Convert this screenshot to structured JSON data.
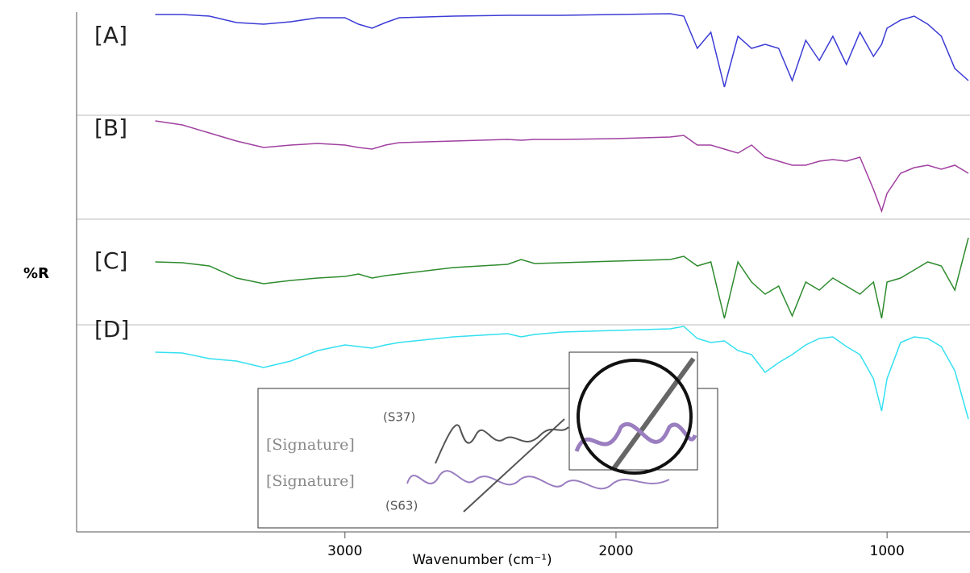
{
  "chart_data": {
    "type": "line",
    "y_label": "%R",
    "x_label": "Wavenumber (cm⁻¹)",
    "x": [
      3700,
      3600,
      3500,
      3400,
      3300,
      3200,
      3100,
      3000,
      2950,
      2900,
      2850,
      2800,
      2600,
      2400,
      2350,
      2300,
      2200,
      2000,
      1800,
      1750,
      1700,
      1650,
      1600,
      1550,
      1500,
      1450,
      1400,
      1350,
      1300,
      1250,
      1200,
      1150,
      1100,
      1050,
      1020,
      1000,
      950,
      900,
      850,
      800,
      750,
      700
    ],
    "xlim": [
      3990,
      694
    ],
    "xticks": [
      3000,
      2000,
      1000
    ],
    "ylim": [
      0,
      65
    ],
    "series": [
      {
        "name": "[A]",
        "color": "#3b3bd6",
        "values": [
          64.2,
          64.2,
          64.0,
          63.2,
          63.0,
          63.3,
          63.8,
          63.8,
          63.0,
          62.5,
          63.2,
          63.8,
          64.0,
          64.1,
          64.1,
          64.1,
          64.1,
          64.2,
          64.3,
          64.0,
          60.0,
          62.0,
          55.2,
          61.5,
          60.0,
          60.5,
          60.0,
          56.0,
          61.0,
          58.5,
          61.5,
          58.0,
          62.0,
          59.0,
          60.5,
          62.5,
          63.5,
          64.0,
          63.0,
          61.5,
          57.5,
          56.0
        ]
      },
      {
        "name": "[B]",
        "color": "#a040a0",
        "values": [
          51.0,
          50.5,
          49.5,
          48.5,
          47.7,
          48.0,
          48.2,
          48.0,
          47.7,
          47.5,
          48.0,
          48.3,
          48.5,
          48.7,
          48.6,
          48.7,
          48.7,
          48.8,
          49.0,
          49.2,
          48.0,
          48.0,
          47.5,
          47.0,
          48.0,
          46.5,
          46.0,
          45.5,
          45.5,
          46.0,
          46.2,
          46.0,
          46.5,
          42.5,
          39.8,
          42.0,
          44.5,
          45.2,
          45.5,
          45.0,
          45.5,
          44.5
        ]
      },
      {
        "name": "[C]",
        "color": "#2e8b2e",
        "values": [
          33.5,
          33.4,
          33.0,
          31.5,
          30.8,
          31.2,
          31.5,
          31.7,
          32.0,
          31.5,
          31.8,
          32.0,
          32.8,
          33.2,
          33.8,
          33.3,
          33.4,
          33.6,
          33.8,
          34.2,
          33.0,
          33.5,
          26.5,
          33.5,
          31.0,
          29.5,
          30.5,
          26.8,
          31.0,
          30.0,
          31.5,
          30.5,
          29.5,
          31.0,
          26.5,
          31.0,
          31.5,
          32.5,
          33.5,
          33.0,
          30.0,
          36.5
        ]
      },
      {
        "name": "[D]",
        "color": "#33e0f0",
        "values": [
          22.3,
          22.2,
          21.5,
          21.2,
          20.4,
          21.2,
          22.5,
          23.2,
          23.0,
          22.8,
          23.2,
          23.5,
          24.2,
          24.6,
          24.2,
          24.5,
          24.8,
          25.0,
          25.2,
          25.5,
          24.0,
          23.5,
          23.7,
          22.5,
          22.0,
          19.8,
          21.0,
          22.0,
          23.2,
          24.0,
          24.2,
          23.0,
          22.0,
          19.0,
          15.0,
          19.0,
          23.5,
          24.2,
          24.0,
          23.0,
          20.0,
          14.0
        ]
      }
    ],
    "annotations": [
      "(S37)",
      "[Signature]",
      "[Signature]",
      "(S63)"
    ]
  }
}
